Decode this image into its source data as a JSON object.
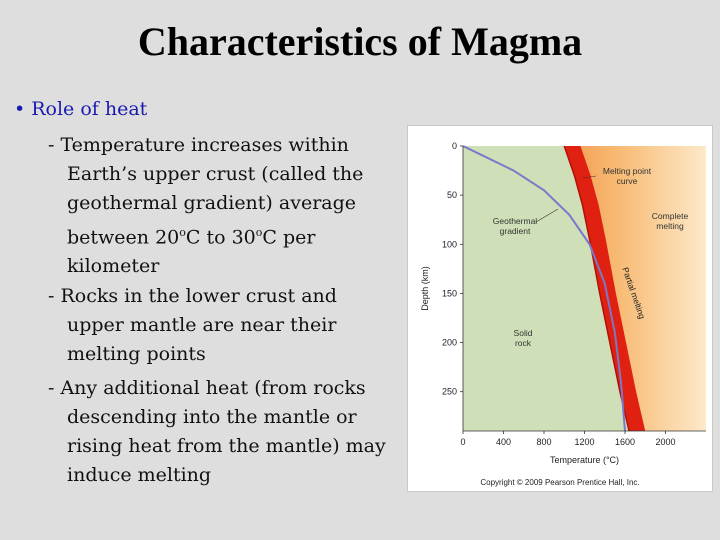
{
  "slide": {
    "title": "Characteristics of Magma",
    "bullet": "Role of heat",
    "points": [
      "- Temperature increases within Earth’s upper crust (called the geothermal gradient) average between 20",
      "- Rocks in the lower crust and upper mantle are near their melting points",
      "- Any additional heat (from rocks descending into the mantle or rising heat from the mantle) may induce melting"
    ],
    "point1_parts": {
      "a": "- Temperature increases within Earth’s upper crust (called the geothermal gradient) average between 20",
      "sup1": "o",
      "b": "C to 30",
      "sup2": "o",
      "c": "C per kilometer"
    }
  },
  "figure": {
    "copyright": "Copyright © 2009 Pearson Prentice Hall, Inc.",
    "labels": {
      "melting_point_curve": [
        "Melting point",
        "curve"
      ],
      "geothermal_gradient": [
        "Geothermal",
        "gradient"
      ],
      "complete_melting": [
        "Complete",
        "melting"
      ],
      "partial_melting": "Partial melting",
      "solid_rock": [
        "Solid",
        "rock"
      ]
    }
  },
  "chart_data": {
    "type": "line",
    "title": "",
    "xlabel": "Temperature (°C)",
    "ylabel": "Depth (km)",
    "xlim": [
      0,
      2400
    ],
    "ylim": [
      0,
      290
    ],
    "y_inverted": true,
    "x_ticks": [
      0,
      400,
      800,
      1200,
      1600,
      2000
    ],
    "y_ticks": [
      0,
      50,
      100,
      150,
      200,
      250
    ],
    "series": [
      {
        "name": "Geothermal gradient",
        "x": [
          0,
          200,
          500,
          800,
          1050,
          1250,
          1400,
          1500,
          1560,
          1600
        ],
        "y": [
          0,
          10,
          25,
          45,
          70,
          100,
          140,
          190,
          240,
          290
        ],
        "color": "#7a78c8"
      },
      {
        "name": "Melting point curve",
        "x": [
          1000,
          1100,
          1180,
          1250,
          1350,
          1450,
          1550,
          1640
        ],
        "y": [
          0,
          30,
          60,
          95,
          150,
          200,
          250,
          290
        ],
        "color": "#e02010"
      }
    ],
    "regions": {
      "solid_color": "#cfe0b8",
      "melting_color": "#f7b870"
    },
    "grid": false
  }
}
